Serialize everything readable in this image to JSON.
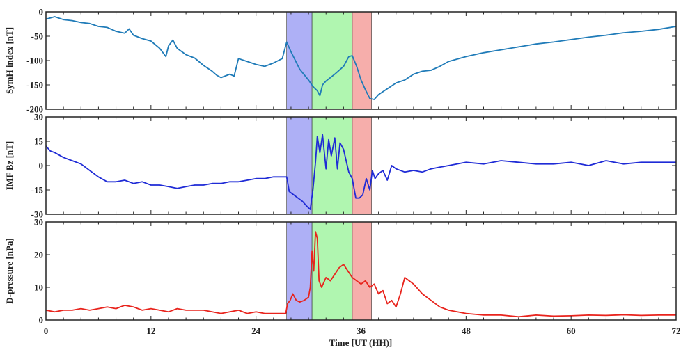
{
  "chart_data": {
    "type": "line",
    "xlabel": "Time [UT (HH)]",
    "xlim": [
      0,
      72
    ],
    "xticks": [
      "0",
      "12",
      "24",
      "36",
      "48",
      "60",
      "72"
    ],
    "shaded_regions": [
      {
        "x0": 27.5,
        "x1": 30.4,
        "color": "#aeb0f6"
      },
      {
        "x0": 30.4,
        "x1": 35.0,
        "color": "#b0f6b0"
      },
      {
        "x0": 35.0,
        "x1": 37.2,
        "color": "#f6aeab"
      }
    ],
    "panels": [
      {
        "ylabel": "SymH index [nT]",
        "ylim": [
          -200,
          0
        ],
        "yticks": [
          "-200",
          "-150",
          "-100",
          "-50",
          "0"
        ],
        "color": "#1f7bb8",
        "x": [
          0,
          1,
          2,
          3,
          4,
          5,
          6,
          7,
          8,
          9,
          9.5,
          10,
          11,
          12,
          13,
          13.7,
          14,
          14.5,
          15,
          16,
          17,
          18,
          19,
          19.5,
          20,
          21,
          21.5,
          22,
          23,
          24,
          25,
          26,
          27,
          27.5,
          28,
          28.5,
          29,
          30,
          30.3,
          30.6,
          31,
          31.3,
          31.6,
          32,
          33,
          34,
          34.6,
          35,
          35.5,
          36,
          36.5,
          37,
          37.5,
          38,
          39,
          40,
          41,
          42,
          43,
          44,
          45,
          46,
          48,
          50,
          52,
          54,
          56,
          58,
          60,
          62,
          64,
          66,
          68,
          70,
          72
        ],
        "values": [
          -15,
          -10,
          -16,
          -18,
          -22,
          -24,
          -30,
          -32,
          -40,
          -44,
          -35,
          -48,
          -55,
          -60,
          -75,
          -92,
          -70,
          -58,
          -75,
          -88,
          -95,
          -110,
          -122,
          -130,
          -135,
          -128,
          -132,
          -96,
          -102,
          -108,
          -112,
          -105,
          -96,
          -62,
          -82,
          -100,
          -118,
          -140,
          -148,
          -155,
          -162,
          -172,
          -150,
          -142,
          -128,
          -112,
          -92,
          -90,
          -112,
          -140,
          -160,
          -178,
          -180,
          -170,
          -158,
          -146,
          -140,
          -128,
          -122,
          -120,
          -112,
          -102,
          -92,
          -84,
          -78,
          -72,
          -66,
          -62,
          -57,
          -52,
          -48,
          -43,
          -40,
          -36,
          -30
        ]
      },
      {
        "ylabel": "IMF Bz [nT]",
        "ylim": [
          -30,
          30
        ],
        "yticks": [
          "-30",
          "-15",
          "0",
          "15",
          "30"
        ],
        "color": "#1f2bd6",
        "x": [
          0,
          0.5,
          1,
          2,
          3,
          4,
          5,
          6,
          7,
          8,
          9,
          10,
          11,
          12,
          13,
          14,
          15,
          16,
          17,
          18,
          19,
          20,
          21,
          22,
          23,
          24,
          25,
          26,
          27,
          27.5,
          27.8,
          28.3,
          28.8,
          29.3,
          29.8,
          30.2,
          30.5,
          30.8,
          31,
          31.3,
          31.6,
          32,
          32.3,
          32.6,
          33,
          33.3,
          33.6,
          34,
          34.3,
          34.6,
          35,
          35.4,
          35.8,
          36.2,
          36.6,
          37,
          37.3,
          37.6,
          38,
          38.5,
          39,
          39.5,
          40,
          41,
          42,
          43,
          44,
          45,
          46,
          48,
          50,
          52,
          54,
          56,
          58,
          60,
          62,
          64,
          66,
          68,
          70,
          72
        ],
        "values": [
          12,
          9,
          8,
          5,
          3,
          1,
          -3,
          -7,
          -10,
          -10,
          -9,
          -11,
          -10,
          -12,
          -12,
          -13,
          -14,
          -13,
          -12,
          -12,
          -11,
          -11,
          -10,
          -10,
          -9,
          -8,
          -8,
          -7,
          -7,
          -7,
          -16,
          -18,
          -20,
          -22,
          -25,
          -27,
          -15,
          2,
          18,
          8,
          19,
          -2,
          16,
          6,
          17,
          -2,
          14,
          10,
          3,
          -4,
          -8,
          -20,
          -20,
          -18,
          -8,
          -15,
          -3,
          -8,
          -5,
          -3,
          -9,
          0,
          -2,
          -4,
          -3,
          -4,
          -2,
          -1,
          0,
          2,
          1,
          3,
          2,
          1,
          1,
          2,
          0,
          3,
          1,
          2,
          2,
          2
        ]
      },
      {
        "ylabel": "D-pressure [nPa]",
        "ylim": [
          0,
          30
        ],
        "yticks": [
          "0",
          "10",
          "20",
          "30"
        ],
        "color": "#e8231c",
        "x": [
          0,
          1,
          2,
          3,
          4,
          5,
          6,
          7,
          8,
          9,
          10,
          11,
          12,
          13,
          14,
          15,
          16,
          17,
          18,
          19,
          20,
          21,
          22,
          23,
          24,
          25,
          26,
          27,
          27.4,
          27.6,
          27.9,
          28.2,
          28.6,
          29,
          29.5,
          30,
          30.2,
          30.4,
          30.6,
          30.8,
          31,
          31.2,
          31.5,
          32,
          32.5,
          33,
          33.5,
          34,
          34.5,
          35,
          35.5,
          36,
          36.5,
          37,
          37.5,
          38,
          38.5,
          39,
          39.5,
          40,
          40.5,
          41,
          41.5,
          42,
          43,
          44,
          45,
          46,
          47,
          48,
          50,
          52,
          54,
          56,
          58,
          60,
          62,
          64,
          66,
          68,
          70,
          72
        ],
        "values": [
          3,
          2.5,
          3,
          3,
          3.5,
          3,
          3.5,
          4,
          3.5,
          4.5,
          4,
          3,
          3.5,
          3,
          2.5,
          3.5,
          3,
          3,
          3,
          2.5,
          2,
          2.5,
          3,
          2,
          2.5,
          2,
          2,
          2,
          2,
          5,
          6,
          8,
          6,
          5.5,
          6,
          7,
          10,
          21,
          15,
          27,
          25,
          12,
          10,
          13,
          12,
          14,
          16,
          17,
          15,
          13,
          12,
          11,
          12,
          10,
          11,
          8,
          9,
          5,
          6,
          4,
          8,
          13,
          12,
          11,
          8,
          6,
          4,
          3,
          2.5,
          2,
          1.5,
          1.5,
          1,
          1.5,
          1.2,
          1.3,
          1.5,
          1.4,
          1.6,
          1.4,
          1.5,
          1.5
        ]
      }
    ]
  }
}
